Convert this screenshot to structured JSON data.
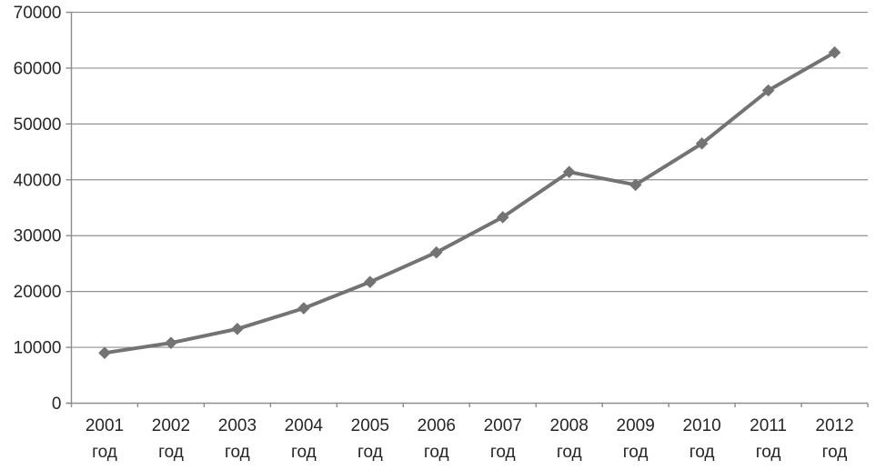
{
  "chart_data": {
    "type": "line",
    "title": "",
    "xlabel": "",
    "ylabel": "",
    "categories": [
      "2001 год",
      "2002 год",
      "2003 год",
      "2004 год",
      "2005 год",
      "2006 год",
      "2007 год",
      "2008 год",
      "2009 год",
      "2010 год",
      "2011 год",
      "2012 год"
    ],
    "values": [
      9000,
      10800,
      13300,
      17000,
      21700,
      27000,
      33300,
      41400,
      39100,
      46500,
      56000,
      62800
    ],
    "ylim": [
      0,
      70000
    ],
    "yticks": [
      0,
      10000,
      20000,
      30000,
      40000,
      50000,
      60000,
      70000
    ],
    "grid": "horizontal-major",
    "legend": "none",
    "marker": "diamond",
    "line_width": 4,
    "colors": {
      "series": "#737373",
      "gridline": "#919191",
      "axis": "#8c8c8c",
      "text": "#262626",
      "background": "#ffffff"
    }
  }
}
